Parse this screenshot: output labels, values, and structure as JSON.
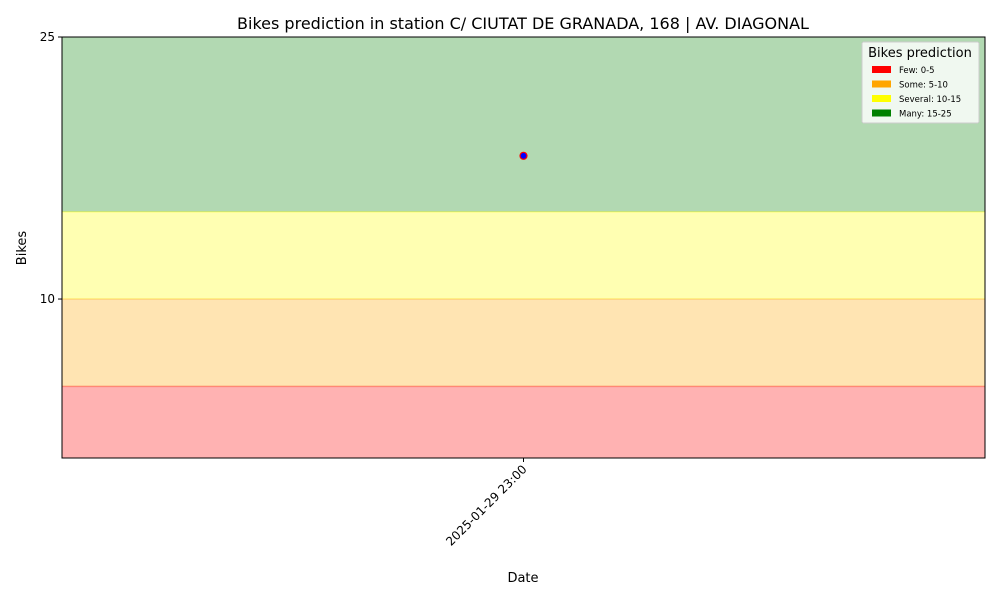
{
  "chart_data": {
    "type": "scatter",
    "title": "Bikes prediction in station C/ CIUTAT DE GRANADA, 168 | AV. DIAGONAL",
    "xlabel": "Date",
    "ylabel": "Bikes",
    "ylim": [
      0.9,
      25
    ],
    "yticks": [
      10,
      25
    ],
    "x": [
      "2025-01-29 23:00"
    ],
    "series": [
      {
        "values": [
          18.2
        ],
        "color": "#0000ff",
        "edge_color": "#ff0000"
      }
    ],
    "bands": [
      {
        "from": 0.9,
        "to": 5,
        "color": "#ff0000"
      },
      {
        "from": 5,
        "to": 10,
        "color": "#ffa500"
      },
      {
        "from": 10,
        "to": 15,
        "color": "#ffff00"
      },
      {
        "from": 15,
        "to": 25,
        "color": "#008000"
      }
    ],
    "legend": {
      "title": "Bikes prediction",
      "position": "top-right",
      "entries": [
        {
          "label": "Few: 0-5",
          "color": "#ff0000"
        },
        {
          "label": "Some: 5-10",
          "color": "#ffa500"
        },
        {
          "label": "Several: 10-15",
          "color": "#ffff00"
        },
        {
          "label": "Many: 15-25",
          "color": "#008000"
        }
      ]
    },
    "grid": false
  }
}
